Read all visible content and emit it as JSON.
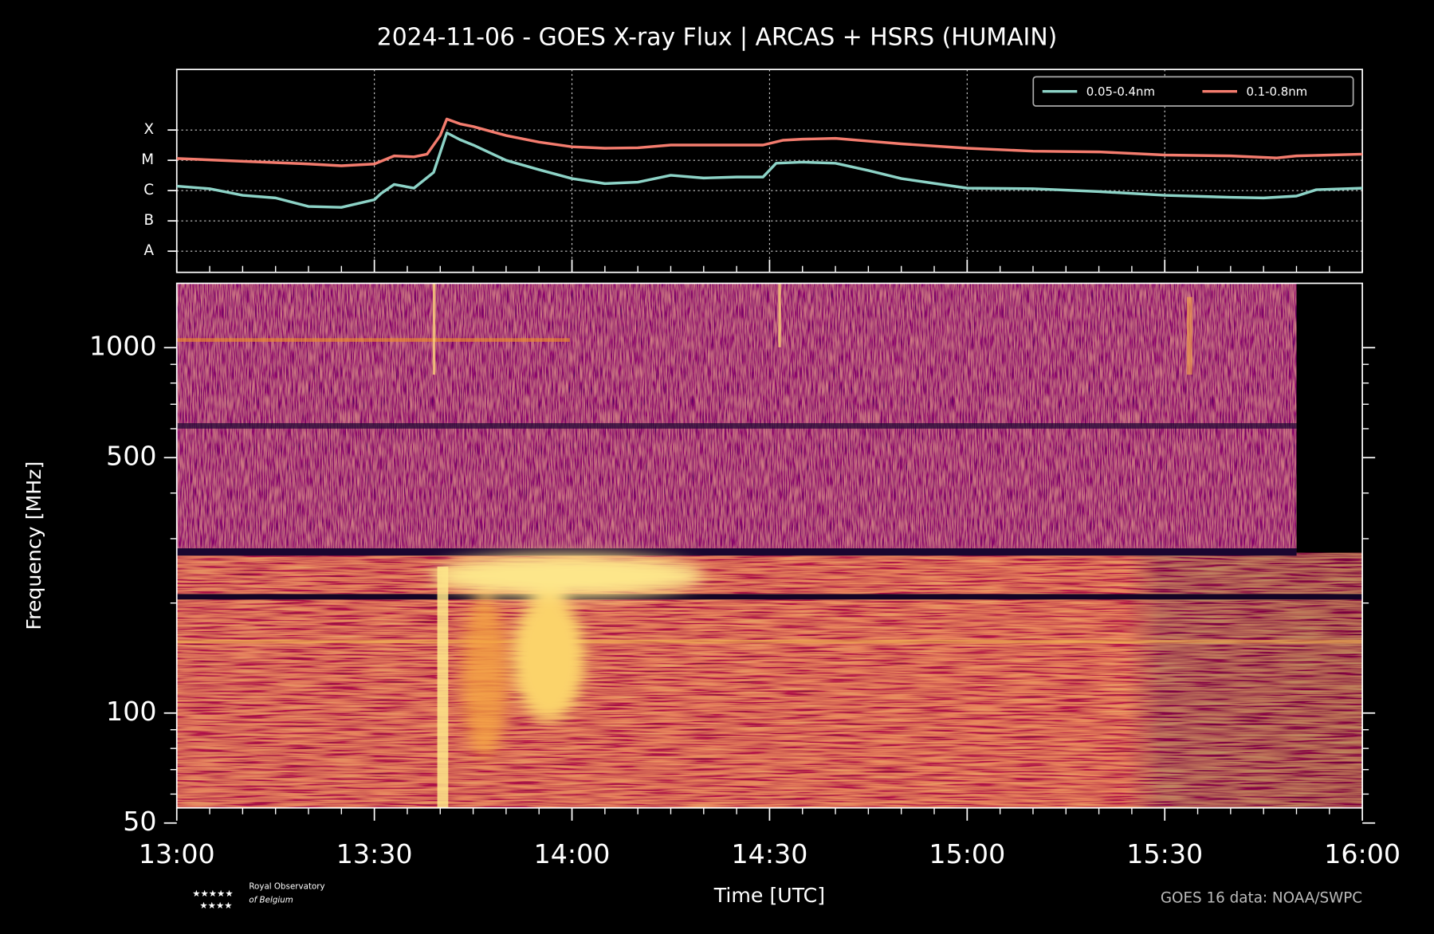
{
  "title": "2024-11-06 - GOES X-ray Flux | ARCAS + HSRS (HUMAIN)",
  "chart_data": [
    {
      "type": "line",
      "log_scale": true,
      "grid": true,
      "legend": "upper right",
      "xlim": [
        "13:00",
        "16:00"
      ],
      "ylim": [
        2e-09,
        0.01
      ],
      "yticks": [
        {
          "value": 1e-08,
          "label": "A"
        },
        {
          "value": 1e-07,
          "label": "B"
        },
        {
          "value": 1e-06,
          "label": "C"
        },
        {
          "value": 1e-05,
          "label": "M"
        },
        {
          "value": 0.0001,
          "label": "X"
        }
      ],
      "series": [
        {
          "name": "0.05-0.4nm",
          "color": "#8dd3c7",
          "x": [
            "13:00",
            "13:05",
            "13:10",
            "13:15",
            "13:20",
            "13:25",
            "13:30",
            "13:31",
            "13:33",
            "13:36",
            "13:39",
            "13:41",
            "13:43",
            "13:45",
            "13:50",
            "13:55",
            "14:00",
            "14:05",
            "14:10",
            "14:15",
            "14:20",
            "14:25",
            "14:29",
            "14:31",
            "14:35",
            "14:40",
            "14:45",
            "14:50",
            "15:00",
            "15:10",
            "15:20",
            "15:30",
            "15:40",
            "15:45",
            "15:50",
            "15:53",
            "16:00"
          ],
          "values": [
            1.4e-06,
            1.15e-06,
            7e-07,
            5.7e-07,
            3e-07,
            2.8e-07,
            5e-07,
            8e-07,
            1.6e-06,
            1.2e-06,
            4e-06,
            8.1e-05,
            4.8e-05,
            3.2e-05,
            1e-05,
            4.9e-06,
            2.5e-06,
            1.7e-06,
            1.9e-06,
            3.2e-06,
            2.6e-06,
            2.8e-06,
            2.8e-06,
            8e-06,
            8.7e-06,
            8e-06,
            4.6e-06,
            2.5e-06,
            1.2e-06,
            1.15e-06,
            9.3e-07,
            7e-07,
            6e-07,
            5.7e-07,
            6.6e-07,
            1.07e-06,
            1.2e-06
          ]
        },
        {
          "name": "0.1-0.8nm",
          "color": "#f47c6e",
          "x": [
            "13:00",
            "13:10",
            "13:20",
            "13:25",
            "13:30",
            "13:33",
            "13:36",
            "13:38",
            "13:40",
            "13:41",
            "13:43",
            "13:45",
            "13:50",
            "13:55",
            "14:00",
            "14:05",
            "14:10",
            "14:15",
            "14:20",
            "14:25",
            "14:29",
            "14:32",
            "14:35",
            "14:40",
            "14:45",
            "14:50",
            "15:00",
            "15:10",
            "15:20",
            "15:30",
            "15:40",
            "15:47",
            "15:50",
            "16:00"
          ],
          "values": [
            1.15e-05,
            9.3e-06,
            7.6e-06,
            6.6e-06,
            7.6e-06,
            1.4e-05,
            1.3e-05,
            1.6e-05,
            6.6e-05,
            0.00023,
            0.00016,
            0.00013,
            6.6e-05,
            4e-05,
            2.8e-05,
            2.5e-05,
            2.6e-05,
            3.2e-05,
            3.2e-05,
            3.2e-05,
            3.2e-05,
            4.6e-05,
            5e-05,
            5.3e-05,
            4.3e-05,
            3.5e-05,
            2.5e-05,
            2e-05,
            1.9e-05,
            1.5e-05,
            1.4e-05,
            1.2e-05,
            1.4e-05,
            1.6e-05
          ]
        }
      ]
    },
    {
      "type": "spectrogram",
      "log_scale": true,
      "ylabel": "Frequency [MHz]",
      "xlabel": "Time [UTC]",
      "xlim": [
        "13:00",
        "16:00"
      ],
      "xticks": [
        "13:00",
        "13:30",
        "14:00",
        "14:30",
        "15:00",
        "15:30",
        "16:00"
      ],
      "ylim": [
        55,
        1500
      ],
      "yticks": [
        50,
        100,
        500,
        1000
      ]
    }
  ],
  "footer": {
    "credit": "GOES 16 data: NOAA/SWPC",
    "logo_lines": [
      "Royal Observatory",
      "of Belgium"
    ]
  }
}
